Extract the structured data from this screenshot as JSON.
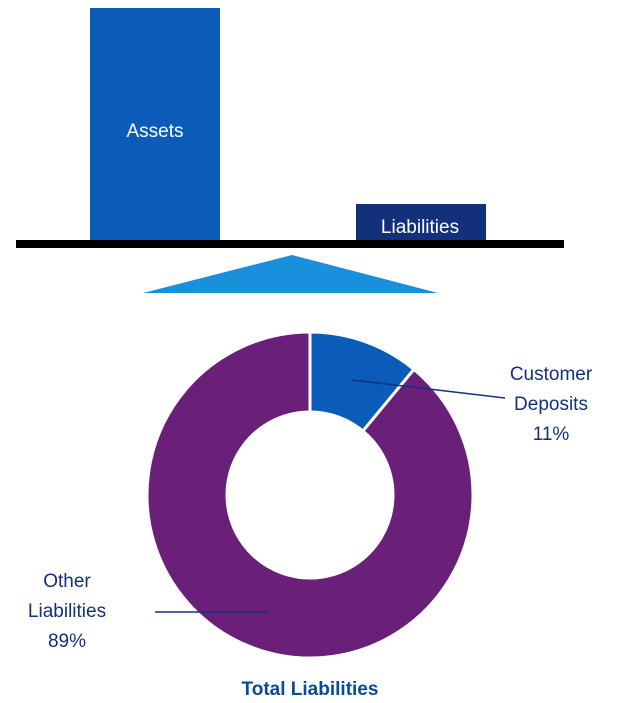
{
  "balance": {
    "left_label": "Assets",
    "right_label": "Liabilities"
  },
  "chart_data": {
    "type": "donut",
    "title": "Total Liabilities",
    "categories": [
      "Customer Deposits",
      "Other Liabilities"
    ],
    "values": [
      11,
      89
    ],
    "value_labels": [
      "11%",
      "89%"
    ],
    "colors": [
      "#0a5cb8",
      "#6a1f78"
    ]
  }
}
